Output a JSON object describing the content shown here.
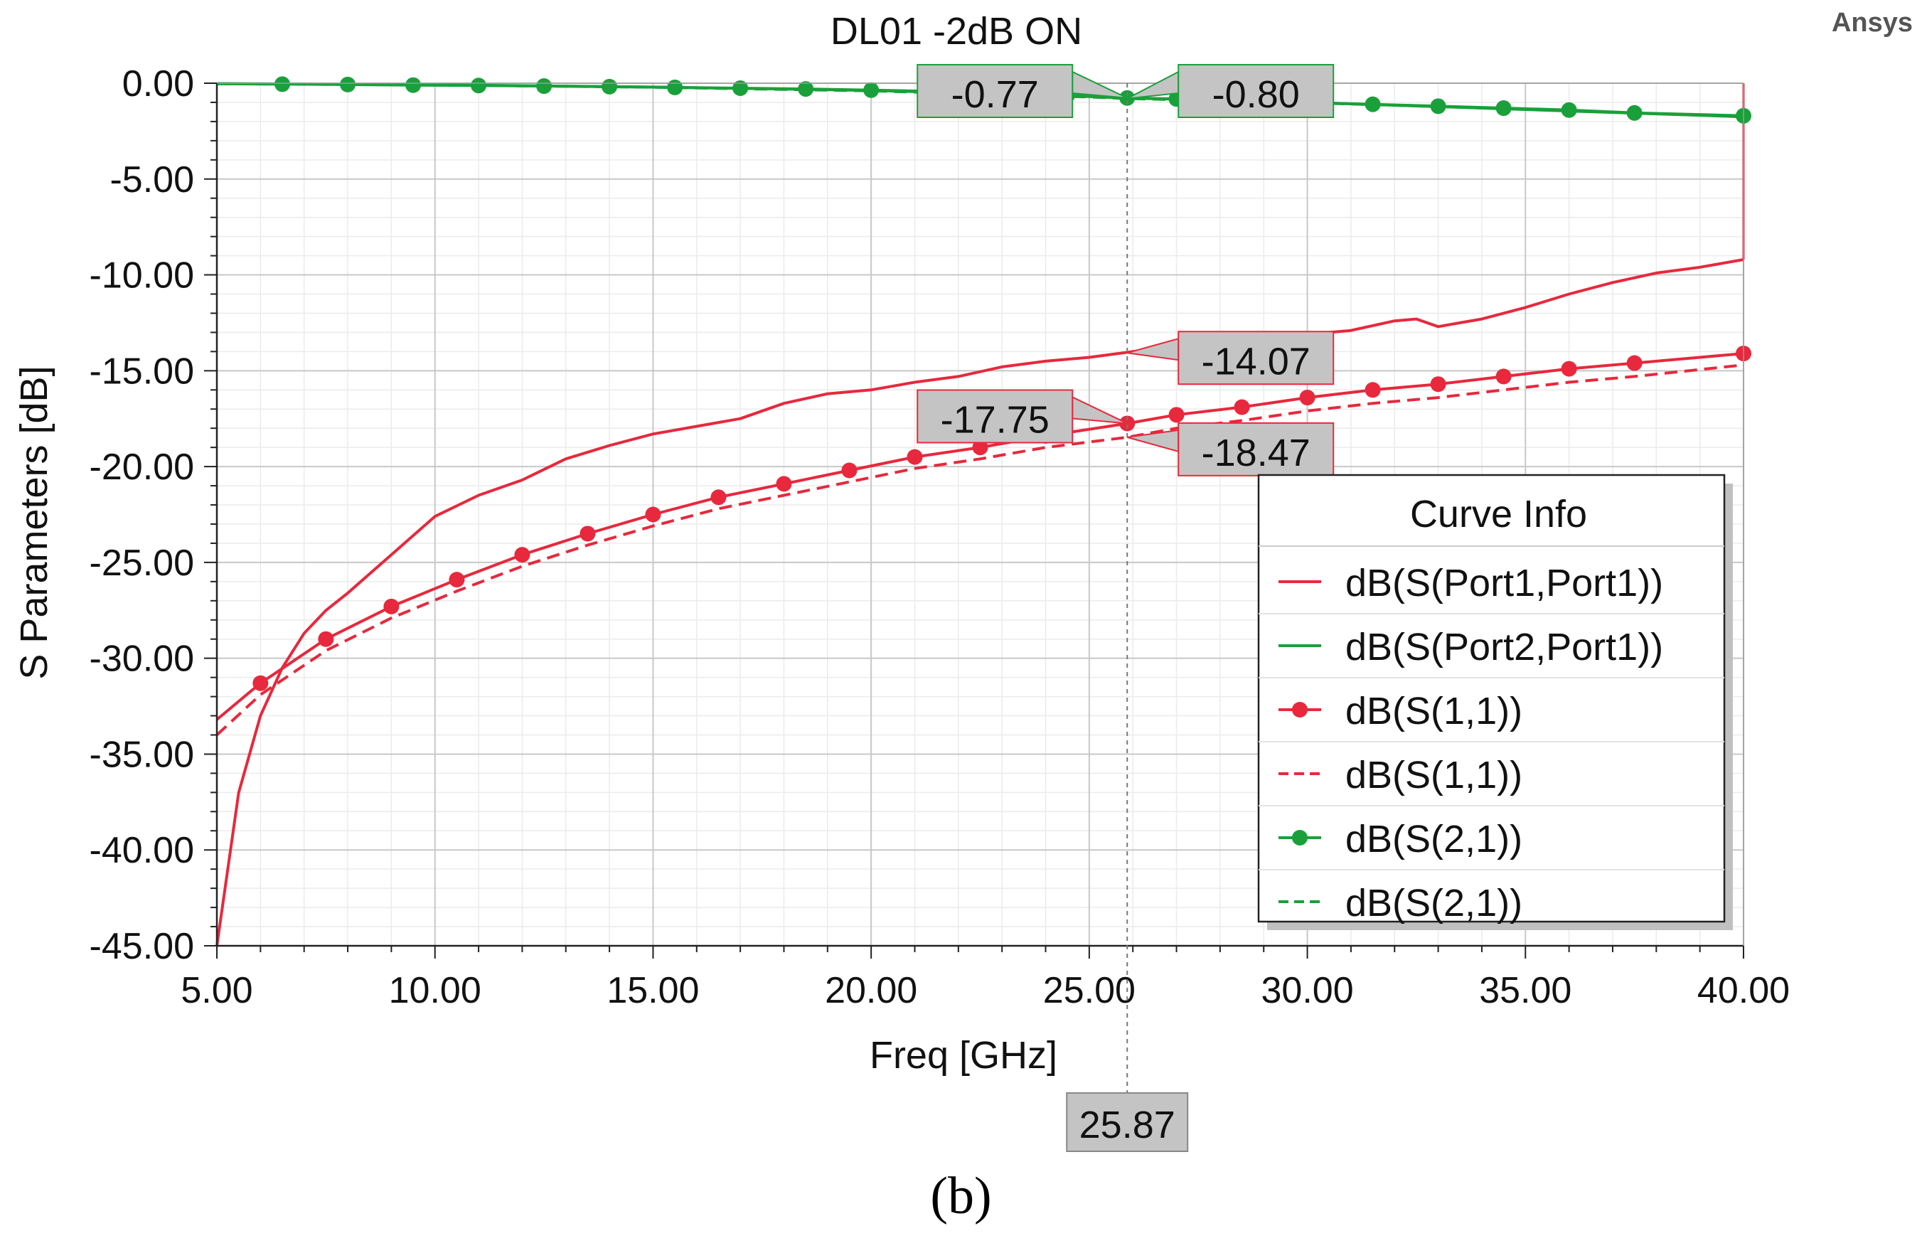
{
  "chart_data": {
    "type": "line",
    "title": "DL01 -2dB ON",
    "brand": "Ansys",
    "xlabel": "Freq [GHz]",
    "ylabel": "S Parameters [dB]",
    "xlim": [
      5,
      40
    ],
    "ylim": [
      -45,
      0
    ],
    "xticks": [
      {
        "value": 5,
        "label": "5.00"
      },
      {
        "value": 10,
        "label": "10.00"
      },
      {
        "value": 15,
        "label": "15.00"
      },
      {
        "value": 20,
        "label": "20.00"
      },
      {
        "value": 25,
        "label": "25.00"
      },
      {
        "value": 30,
        "label": "30.00"
      },
      {
        "value": 35,
        "label": "35.00"
      },
      {
        "value": 40,
        "label": "40.00"
      }
    ],
    "yticks": [
      {
        "value": 0,
        "label": "0.00"
      },
      {
        "value": -5,
        "label": "-5.00"
      },
      {
        "value": -10,
        "label": "-10.00"
      },
      {
        "value": -15,
        "label": "-15.00"
      },
      {
        "value": -20,
        "label": "-20.00"
      },
      {
        "value": -25,
        "label": "-25.00"
      },
      {
        "value": -30,
        "label": "-30.00"
      },
      {
        "value": -35,
        "label": "-35.00"
      },
      {
        "value": -40,
        "label": "-40.00"
      },
      {
        "value": -45,
        "label": "-45.00"
      }
    ],
    "grid": true,
    "legend": {
      "title": "Curve Info",
      "position": "bottom-right"
    },
    "series": [
      {
        "name": "dB(S(Port1,Port1))",
        "color": "#e8283c",
        "style": "solid",
        "marker": false,
        "x": [
          5,
          5.5,
          6,
          6.5,
          7,
          7.5,
          8,
          9,
          10,
          11,
          12,
          13,
          14,
          15,
          16,
          17,
          18,
          19,
          20,
          21,
          22,
          23,
          24,
          25,
          26,
          27,
          28,
          29,
          30,
          31,
          32,
          32.5,
          33,
          33.5,
          34,
          35,
          36,
          37,
          38,
          39,
          40
        ],
        "y": [
          -45,
          -37,
          -33,
          -30.5,
          -28.7,
          -27.5,
          -26.6,
          -24.6,
          -22.6,
          -21.5,
          -20.7,
          -19.6,
          -18.9,
          -18.3,
          -17.9,
          -17.5,
          -16.7,
          -16.2,
          -16.0,
          -15.6,
          -15.3,
          -14.8,
          -14.5,
          -14.3,
          -14.0,
          -13.7,
          -13.4,
          -13.2,
          -13.1,
          -12.9,
          -12.4,
          -12.3,
          -12.7,
          -12.5,
          -12.3,
          -11.7,
          -11.0,
          -10.4,
          -9.9,
          -9.6,
          -9.2
        ]
      },
      {
        "name": "dB(S(Port2,Port1))",
        "color": "#1aa03a",
        "style": "solid",
        "marker": false,
        "x": [
          5,
          10,
          15,
          20,
          22,
          25,
          25.87,
          28,
          30,
          32,
          34,
          36,
          38,
          40
        ],
        "y": [
          -0.02,
          -0.08,
          -0.2,
          -0.38,
          -0.5,
          -0.7,
          -0.78,
          -0.88,
          -1.0,
          -1.15,
          -1.3,
          -1.45,
          -1.6,
          -1.75
        ]
      },
      {
        "name": "dB(S(1,1))",
        "color": "#e8283c",
        "style": "solid",
        "marker": true,
        "x": [
          5,
          6,
          7.5,
          9,
          10.5,
          12,
          13.5,
          15,
          16.5,
          18,
          19.5,
          21,
          22.5,
          24,
          25.87,
          27,
          28.5,
          30,
          31.5,
          33,
          34.5,
          36,
          37.5,
          40
        ],
        "y": [
          -33.2,
          -31.3,
          -29.0,
          -27.3,
          -25.9,
          -24.6,
          -23.5,
          -22.5,
          -21.6,
          -20.9,
          -20.2,
          -19.5,
          -19.0,
          -18.4,
          -17.75,
          -17.3,
          -16.9,
          -16.4,
          -16.0,
          -15.7,
          -15.3,
          -14.9,
          -14.6,
          -14.1
        ]
      },
      {
        "name": "dB(S(1,1))",
        "color": "#e8283c",
        "style": "dashed",
        "marker": false,
        "x": [
          5,
          6,
          7.5,
          9,
          10.5,
          12,
          13.5,
          15,
          16.5,
          18,
          19.5,
          21,
          22.5,
          24,
          25.87,
          27,
          28.5,
          30,
          31.5,
          33,
          34.5,
          36,
          37.5,
          40
        ],
        "y": [
          -34.0,
          -31.9,
          -29.6,
          -27.9,
          -26.5,
          -25.2,
          -24.1,
          -23.1,
          -22.2,
          -21.5,
          -20.8,
          -20.1,
          -19.6,
          -19.0,
          -18.47,
          -18.0,
          -17.6,
          -17.1,
          -16.7,
          -16.4,
          -16.0,
          -15.6,
          -15.3,
          -14.7
        ]
      },
      {
        "name": "dB(S(2,1))",
        "color": "#1aa03a",
        "style": "solid",
        "marker": true,
        "x": [
          5,
          6.5,
          8,
          9.5,
          11,
          12.5,
          14,
          15.5,
          17,
          18.5,
          20,
          21.5,
          23,
          24.5,
          25.87,
          27,
          28.5,
          30,
          31.5,
          33,
          34.5,
          36,
          37.5,
          40
        ],
        "y": [
          -0.03,
          -0.05,
          -0.07,
          -0.1,
          -0.12,
          -0.15,
          -0.18,
          -0.22,
          -0.26,
          -0.3,
          -0.36,
          -0.43,
          -0.52,
          -0.62,
          -0.77,
          -0.82,
          -0.9,
          -1.0,
          -1.1,
          -1.2,
          -1.3,
          -1.4,
          -1.55,
          -1.7
        ]
      },
      {
        "name": "dB(S(2,1))",
        "color": "#1aa03a",
        "style": "dashed",
        "marker": false,
        "x": [
          5,
          10,
          15,
          20,
          25,
          25.87,
          30,
          35,
          40
        ],
        "y": [
          -0.03,
          -0.09,
          -0.21,
          -0.4,
          -0.72,
          -0.8,
          -1.02,
          -1.35,
          -1.75
        ]
      }
    ],
    "cursor": {
      "x": 25.87,
      "label": "25.87"
    },
    "markers": [
      {
        "label": "-0.77",
        "x": 25.87,
        "y": -0.77,
        "side": "left",
        "color": "#1aa03a"
      },
      {
        "label": "-0.80",
        "x": 25.87,
        "y": -0.8,
        "side": "right",
        "color": "#1aa03a"
      },
      {
        "label": "-14.07",
        "x": 25.87,
        "y": -14.07,
        "side": "right",
        "color": "#e8283c"
      },
      {
        "label": "-17.75",
        "x": 25.87,
        "y": -17.75,
        "side": "left",
        "color": "#e8283c"
      },
      {
        "label": "-18.47",
        "x": 25.87,
        "y": -18.47,
        "side": "right",
        "color": "#e8283c"
      }
    ],
    "caption": "(b)"
  }
}
